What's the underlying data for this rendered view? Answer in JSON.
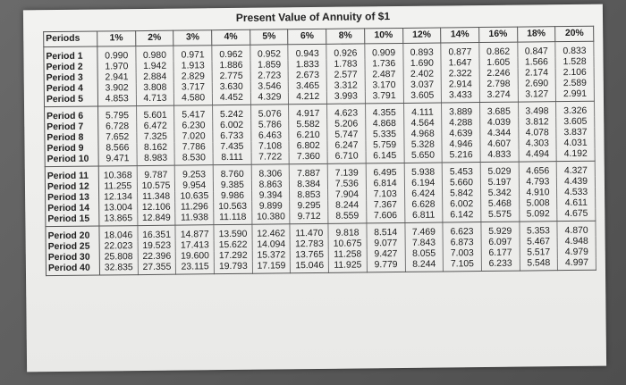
{
  "title": "Present Value of Annuity of $1",
  "table": {
    "headers": [
      "Periods",
      "1%",
      "2%",
      "3%",
      "4%",
      "5%",
      "6%",
      "8%",
      "10%",
      "12%",
      "14%",
      "16%",
      "18%",
      "20%"
    ],
    "groups": [
      [
        [
          "Period 1",
          "0.990",
          "0.980",
          "0.971",
          "0.962",
          "0.952",
          "0.943",
          "0.926",
          "0.909",
          "0.893",
          "0.877",
          "0.862",
          "0.847",
          "0.833"
        ],
        [
          "Period 2",
          "1.970",
          "1.942",
          "1.913",
          "1.886",
          "1.859",
          "1.833",
          "1.783",
          "1.736",
          "1.690",
          "1.647",
          "1.605",
          "1.566",
          "1.528"
        ],
        [
          "Period 3",
          "2.941",
          "2.884",
          "2.829",
          "2.775",
          "2.723",
          "2.673",
          "2.577",
          "2.487",
          "2.402",
          "2.322",
          "2.246",
          "2.174",
          "2.106"
        ],
        [
          "Period 4",
          "3.902",
          "3.808",
          "3.717",
          "3.630",
          "3.546",
          "3.465",
          "3.312",
          "3.170",
          "3.037",
          "2.914",
          "2.798",
          "2.690",
          "2.589"
        ],
        [
          "Period 5",
          "4.853",
          "4.713",
          "4.580",
          "4.452",
          "4.329",
          "4.212",
          "3.993",
          "3.791",
          "3.605",
          "3.433",
          "3.274",
          "3.127",
          "2.991"
        ]
      ],
      [
        [
          "Period 6",
          "5.795",
          "5.601",
          "5.417",
          "5.242",
          "5.076",
          "4.917",
          "4.623",
          "4.355",
          "4.111",
          "3.889",
          "3.685",
          "3.498",
          "3.326"
        ],
        [
          "Period 7",
          "6.728",
          "6.472",
          "6.230",
          "6.002",
          "5.786",
          "5.582",
          "5.206",
          "4.868",
          "4.564",
          "4.288",
          "4.039",
          "3.812",
          "3.605"
        ],
        [
          "Period 8",
          "7.652",
          "7.325",
          "7.020",
          "6.733",
          "6.463",
          "6.210",
          "5.747",
          "5.335",
          "4.968",
          "4.639",
          "4.344",
          "4.078",
          "3.837"
        ],
        [
          "Period 9",
          "8.566",
          "8.162",
          "7.786",
          "7.435",
          "7.108",
          "6.802",
          "6.247",
          "5.759",
          "5.328",
          "4.946",
          "4.607",
          "4.303",
          "4.031"
        ],
        [
          "Period 10",
          "9.471",
          "8.983",
          "8.530",
          "8.111",
          "7.722",
          "7.360",
          "6.710",
          "6.145",
          "5.650",
          "5.216",
          "4.833",
          "4.494",
          "4.192"
        ]
      ],
      [
        [
          "Period 11",
          "10.368",
          "9.787",
          "9.253",
          "8.760",
          "8.306",
          "7.887",
          "7.139",
          "6.495",
          "5.938",
          "5.453",
          "5.029",
          "4.656",
          "4.327"
        ],
        [
          "Period 12",
          "11.255",
          "10.575",
          "9.954",
          "9.385",
          "8.863",
          "8.384",
          "7.536",
          "6.814",
          "6.194",
          "5.660",
          "5.197",
          "4.793",
          "4.439"
        ],
        [
          "Period 13",
          "12.134",
          "11.348",
          "10.635",
          "9.986",
          "9.394",
          "8.853",
          "7.904",
          "7.103",
          "6.424",
          "5.842",
          "5.342",
          "4.910",
          "4.533"
        ],
        [
          "Period 14",
          "13.004",
          "12.106",
          "11.296",
          "10.563",
          "9.899",
          "9.295",
          "8.244",
          "7.367",
          "6.628",
          "6.002",
          "5.468",
          "5.008",
          "4.611"
        ],
        [
          "Period 15",
          "13.865",
          "12.849",
          "11.938",
          "11.118",
          "10.380",
          "9.712",
          "8.559",
          "7.606",
          "6.811",
          "6.142",
          "5.575",
          "5.092",
          "4.675"
        ]
      ],
      [
        [
          "Period 20",
          "18.046",
          "16.351",
          "14.877",
          "13.590",
          "12.462",
          "11.470",
          "9.818",
          "8.514",
          "7.469",
          "6.623",
          "5.929",
          "5.353",
          "4.870"
        ],
        [
          "Period 25",
          "22.023",
          "19.523",
          "17.413",
          "15.622",
          "14.094",
          "12.783",
          "10.675",
          "9.077",
          "7.843",
          "6.873",
          "6.097",
          "5.467",
          "4.948"
        ],
        [
          "Period 30",
          "25.808",
          "22.396",
          "19.600",
          "17.292",
          "15.372",
          "13.765",
          "11.258",
          "9.427",
          "8.055",
          "7.003",
          "6.177",
          "5.517",
          "4.979"
        ],
        [
          "Period 40",
          "32.835",
          "27.355",
          "23.115",
          "19.793",
          "17.159",
          "15.046",
          "11.925",
          "9.779",
          "8.244",
          "7.105",
          "6.233",
          "5.548",
          "4.997"
        ]
      ]
    ]
  }
}
